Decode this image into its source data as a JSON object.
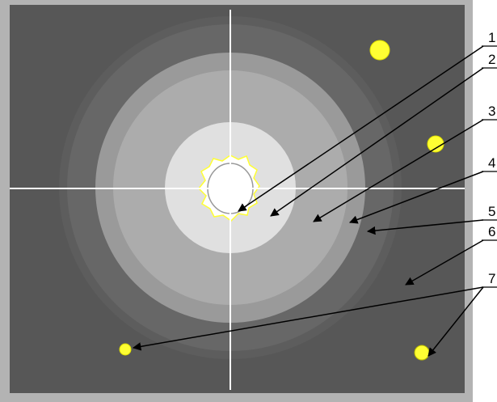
{
  "labels": [
    "1",
    "2",
    "3",
    "4",
    "5",
    "6",
    "7"
  ]
}
